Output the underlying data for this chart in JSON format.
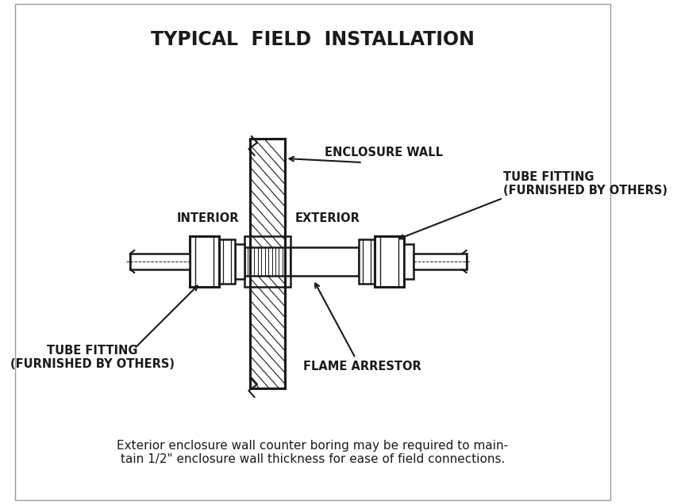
{
  "title": "TYPICAL  FIELD  INSTALLATION",
  "title_fontsize": 17,
  "title_fontweight": "bold",
  "footnote": "Exterior enclosure wall counter boring may be required to main-\ntain 1/2\" enclosure wall thickness for ease of field connections.",
  "footnote_fontsize": 11,
  "bg_color": "#ffffff",
  "line_color": "#1a1a1a",
  "hatch_color": "#1a1a1a",
  "labels": {
    "enclosure_wall": "ENCLOSURE WALL",
    "interior": "INTERIOR",
    "exterior": "EXTERIOR",
    "tube_fitting_right": "TUBE FITTING\n(FURNISHED BY OTHERS)",
    "tube_fitting_left": "TUBE FITTING\n(FURNISHED BY OTHERS)",
    "flame_arrestor": "FLAME ARRESTOR"
  },
  "label_fontsize": 10.5,
  "label_fontweight": "bold"
}
